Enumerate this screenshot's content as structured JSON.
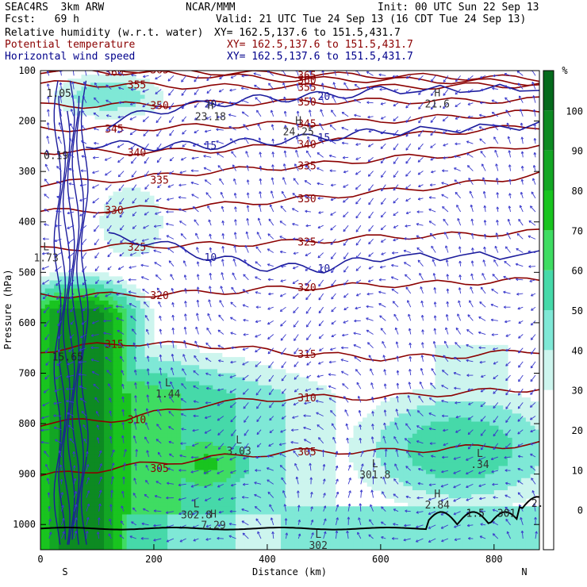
{
  "header": {
    "model": "SEAC4RS  3km ARW",
    "fcst": "Fcst:   69 h",
    "org": "NCAR/MMM",
    "init": "Init: 00 UTC Sun 22 Sep 13",
    "valid": "Valid: 21 UTC Tue 24 Sep 13 (16 CDT Tue 24 Sep 13)",
    "fields": [
      {
        "name": "Relative humidity (w.r.t. water)",
        "xy": "XY= 162.5,137.6 to 151.5,431.7",
        "color": "#000000"
      },
      {
        "name": "Potential temperature",
        "xy": "XY= 162.5,137.6 to 151.5,431.7",
        "color": "#8b0000"
      },
      {
        "name": "Horizontal wind speed",
        "xy": "XY= 162.5,137.6 to 151.5,431.7",
        "color": "#00008b"
      }
    ]
  },
  "chart_data": {
    "type": "heatmap",
    "title": "",
    "xlabel": "Distance (km)",
    "ylabel": "Pressure (hPa)",
    "xlim": [
      0,
      880
    ],
    "ylim": [
      1050,
      100
    ],
    "x_ticks": [
      0,
      200,
      400,
      600,
      800
    ],
    "y_ticks": [
      100,
      200,
      300,
      400,
      500,
      600,
      700,
      800,
      900,
      1000
    ],
    "x_end_labels": {
      "left": "S",
      "right": "N"
    },
    "colorbar": {
      "unit": "%",
      "ticks": [
        0,
        10,
        20,
        30,
        40,
        50,
        60,
        70,
        80,
        90,
        100
      ],
      "bins": [
        {
          "lo": 30,
          "hi": 40,
          "color": "#cdf5ee"
        },
        {
          "lo": 40,
          "hi": 50,
          "color": "#7fe8d6"
        },
        {
          "lo": 50,
          "hi": 60,
          "color": "#46d9a9"
        },
        {
          "lo": 60,
          "hi": 70,
          "color": "#3fdc62"
        },
        {
          "lo": 70,
          "hi": 80,
          "color": "#19c41f"
        },
        {
          "lo": 80,
          "hi": 90,
          "color": "#13a624"
        },
        {
          "lo": 90,
          "hi": 100,
          "color": "#0d8a22"
        },
        {
          "lo": 100,
          "hi": 110,
          "color": "#056a1c"
        }
      ]
    },
    "theta_contours": [
      {
        "value": 365,
        "p": [
          95,
          98,
          103,
          108,
          110,
          113,
          116
        ]
      },
      {
        "value": 360,
        "p": [
          100,
          103,
          110,
          118,
          118,
          121,
          124
        ]
      },
      {
        "value": 355,
        "p": [
          125,
          128,
          132,
          132,
          133,
          130,
          128
        ]
      },
      {
        "value": 350,
        "p": [
          170,
          168,
          165,
          162,
          160,
          160,
          158
        ]
      },
      {
        "value": 345,
        "p": [
          215,
          215,
          210,
          205,
          200,
          190,
          182
        ]
      },
      {
        "value": 340,
        "p": [
          260,
          262,
          258,
          248,
          232,
          220,
          210
        ]
      },
      {
        "value": 335,
        "p": [
          325,
          315,
          300,
          290,
          275,
          265,
          245
        ]
      },
      {
        "value": 330,
        "p": [
          380,
          375,
          368,
          355,
          340,
          325,
          305
        ]
      },
      {
        "value": 325,
        "p": [
          455,
          448,
          445,
          440,
          430,
          425,
          420
        ]
      },
      {
        "value": 320,
        "p": [
          545,
          545,
          540,
          530,
          525,
          520,
          515
        ]
      },
      {
        "value": 315,
        "p": [
          655,
          640,
          645,
          660,
          670,
          665,
          655
        ]
      },
      {
        "value": 310,
        "p": [
          800,
          790,
          760,
          748,
          748,
          738,
          730
        ]
      },
      {
        "value": 305,
        "p": [
          905,
          885,
          868,
          855,
          855,
          848,
          840
        ]
      }
    ],
    "wind_speed_contours_labels": [
      10,
      15,
      20
    ],
    "pressure_labels": [
      {
        "type": "H",
        "value": "23.18",
        "x": 300,
        "p": 195
      },
      {
        "type": "H",
        "value": "24.25",
        "x": 455,
        "p": 225
      },
      {
        "type": "H",
        "value": "21.6",
        "x": 700,
        "p": 170
      },
      {
        "type": "L",
        "value": "1.73",
        "x": 10,
        "p": 475
      },
      {
        "type": "L",
        "value": "1.44",
        "x": 225,
        "p": 745
      },
      {
        "type": "L",
        "value": "3.03",
        "x": 350,
        "p": 858
      },
      {
        "type": "L",
        "value": "302.8",
        "x": 275,
        "p": 985
      },
      {
        "type": "H",
        "value": "7.29",
        "x": 305,
        "p": 1005
      },
      {
        "type": "L",
        "value": "301.8",
        "x": 590,
        "p": 905
      },
      {
        "type": "L",
        "value": ".34",
        "x": 775,
        "p": 885
      },
      {
        "type": "H",
        "value": "2.84",
        "x": 700,
        "p": 965
      },
      {
        "type": "L",
        "value": "302",
        "x": 490,
        "p": 1045
      }
    ],
    "misc_labels": [
      {
        "text": "1.05",
        "x": 5,
        "p": 152
      },
      {
        "text": "0.19",
        "x": 0,
        "p": 275
      },
      {
        "text": "15.65",
        "x": 15,
        "p": 675
      },
      {
        "text": "1.5",
        "x": 745,
        "p": 985
      },
      {
        "text": "301",
        "x": 800,
        "p": 985
      },
      {
        "text": "2.5",
        "x": 860,
        "p": 965
      }
    ]
  }
}
